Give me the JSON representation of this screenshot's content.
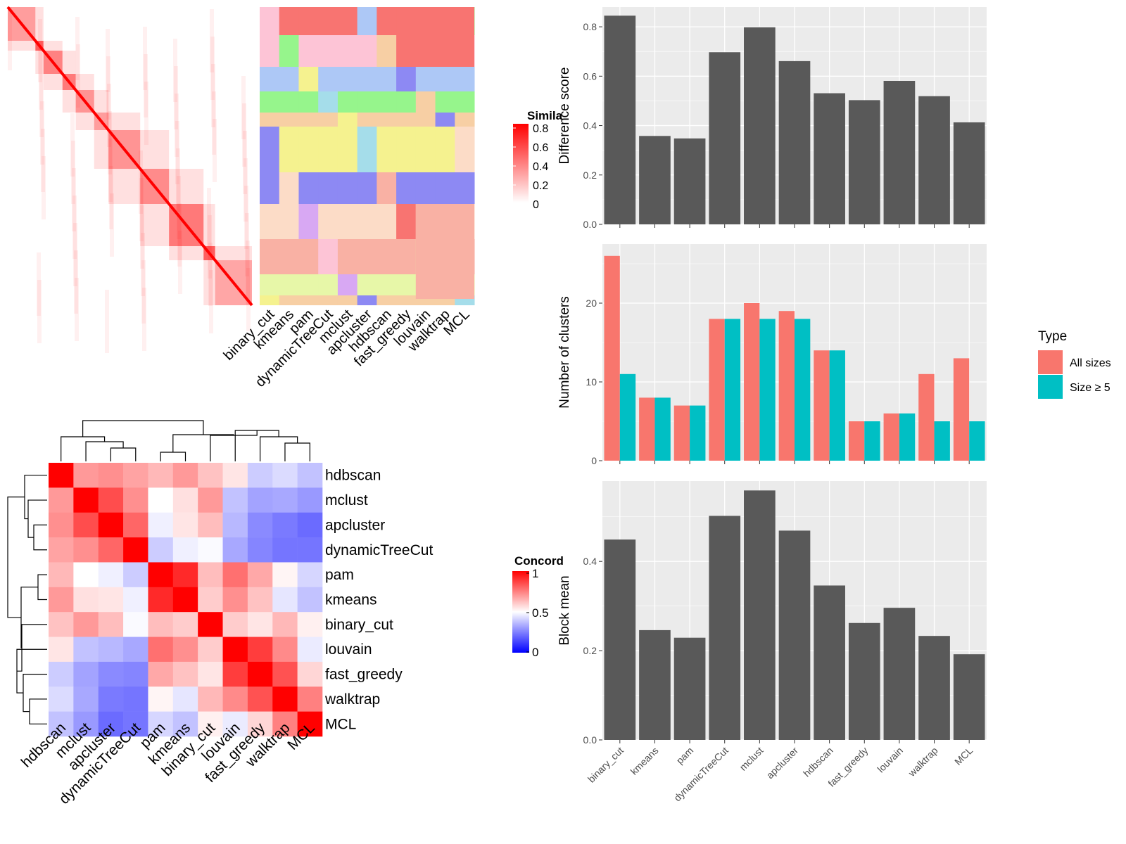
{
  "methods": [
    "binary_cut",
    "kmeans",
    "pam",
    "dynamicTreeCut",
    "mclust",
    "apcluster",
    "hdbscan",
    "fast_greedy",
    "louvain",
    "walktrap",
    "MCL"
  ],
  "colors": {
    "panel_bg": "#EBEBEB",
    "grid": "#FFFFFF",
    "bar_dark": "#595959",
    "all_sizes": "#F8766D",
    "size_ge_5": "#00BFC4",
    "heat_red": "#FF0000",
    "heat_blue": "#0000FF"
  },
  "similarity_heatmap": {
    "legend_title": "Simila",
    "legend_ticks": [
      "0.8",
      "0.6",
      "0.4",
      "0.2",
      "0"
    ],
    "column_labels": [
      "binary_cut",
      "kmeans",
      "pam",
      "dynamicTreeCut",
      "mclust",
      "apcluster",
      "hdbscan",
      "fast_greedy",
      "louvain",
      "walktrap",
      "MCL"
    ]
  },
  "concordance": {
    "legend_title": "Concord",
    "legend_ticks": [
      "1",
      "0.5",
      "0"
    ],
    "order": [
      "hdbscan",
      "mclust",
      "apcluster",
      "dynamicTreeCut",
      "pam",
      "kmeans",
      "binary_cut",
      "louvain",
      "fast_greedy",
      "walktrap",
      "MCL"
    ]
  },
  "chart_data": [
    {
      "type": "bar",
      "categories": [
        "binary_cut",
        "kmeans",
        "pam",
        "dynamicTreeCut",
        "mclust",
        "apcluster",
        "hdbscan",
        "fast_greedy",
        "louvain",
        "walktrap",
        "MCL"
      ],
      "values": [
        0.845,
        0.358,
        0.348,
        0.697,
        0.798,
        0.661,
        0.531,
        0.503,
        0.581,
        0.519,
        0.413
      ],
      "title": "",
      "xlabel": "",
      "ylabel": "Difference score",
      "ylim": [
        0,
        0.88
      ],
      "yticks": [
        "0.0",
        "0.2",
        "0.4",
        "0.6",
        "0.8"
      ],
      "grid": true
    },
    {
      "type": "bar",
      "categories": [
        "binary_cut",
        "kmeans",
        "pam",
        "dynamicTreeCut",
        "mclust",
        "apcluster",
        "hdbscan",
        "fast_greedy",
        "louvain",
        "walktrap",
        "MCL"
      ],
      "series": [
        {
          "name": "All sizes",
          "values": [
            26,
            8,
            7,
            18,
            20,
            19,
            14,
            5,
            6,
            11,
            13
          ]
        },
        {
          "name": "Size ≥ 5",
          "values": [
            11,
            8,
            7,
            18,
            18,
            18,
            14,
            5,
            6,
            5,
            5
          ]
        }
      ],
      "title": "",
      "xlabel": "",
      "ylabel": "Number of clusters",
      "ylim": [
        0,
        27.5
      ],
      "yticks": [
        "0",
        "10",
        "20"
      ],
      "legend_title": "Type",
      "legend_position": "right",
      "grid": true
    },
    {
      "type": "bar",
      "categories": [
        "binary_cut",
        "kmeans",
        "pam",
        "dynamicTreeCut",
        "mclust",
        "apcluster",
        "hdbscan",
        "fast_greedy",
        "louvain",
        "walktrap",
        "MCL"
      ],
      "values": [
        0.449,
        0.246,
        0.229,
        0.502,
        0.559,
        0.469,
        0.346,
        0.262,
        0.296,
        0.233,
        0.192
      ],
      "title": "",
      "xlabel": "",
      "ylabel": "Block mean",
      "ylim": [
        0,
        0.58
      ],
      "yticks": [
        "0.0",
        "0.2",
        "0.4"
      ],
      "grid": true
    },
    {
      "type": "heatmap",
      "title": "",
      "rows": [
        "hdbscan",
        "mclust",
        "apcluster",
        "dynamicTreeCut",
        "pam",
        "kmeans",
        "binary_cut",
        "louvain",
        "fast_greedy",
        "walktrap",
        "MCL"
      ],
      "columns": [
        "hdbscan",
        "mclust",
        "apcluster",
        "dynamicTreeCut",
        "pam",
        "kmeans",
        "binary_cut",
        "louvain",
        "fast_greedy",
        "walktrap",
        "MCL"
      ],
      "values": [
        [
          1.0,
          0.7,
          0.72,
          0.68,
          0.64,
          0.7,
          0.62,
          0.55,
          0.4,
          0.43,
          0.38
        ],
        [
          0.7,
          1.0,
          0.85,
          0.72,
          0.5,
          0.56,
          0.7,
          0.38,
          0.32,
          0.33,
          0.3
        ],
        [
          0.72,
          0.85,
          1.0,
          0.8,
          0.47,
          0.55,
          0.63,
          0.36,
          0.27,
          0.24,
          0.21
        ],
        [
          0.68,
          0.72,
          0.8,
          1.0,
          0.4,
          0.47,
          0.49,
          0.33,
          0.26,
          0.23,
          0.23
        ],
        [
          0.64,
          0.5,
          0.47,
          0.4,
          1.0,
          0.92,
          0.63,
          0.78,
          0.67,
          0.52,
          0.42
        ],
        [
          0.7,
          0.56,
          0.55,
          0.47,
          0.92,
          1.0,
          0.6,
          0.72,
          0.62,
          0.45,
          0.38
        ],
        [
          0.62,
          0.7,
          0.63,
          0.49,
          0.63,
          0.6,
          1.0,
          0.6,
          0.55,
          0.64,
          0.53
        ],
        [
          0.55,
          0.38,
          0.36,
          0.33,
          0.78,
          0.72,
          0.6,
          1.0,
          0.88,
          0.73,
          0.46
        ],
        [
          0.4,
          0.32,
          0.27,
          0.26,
          0.67,
          0.62,
          0.55,
          0.88,
          1.0,
          0.84,
          0.58
        ],
        [
          0.43,
          0.33,
          0.24,
          0.23,
          0.52,
          0.45,
          0.64,
          0.73,
          0.84,
          1.0,
          0.75
        ],
        [
          0.38,
          0.3,
          0.21,
          0.23,
          0.42,
          0.38,
          0.53,
          0.46,
          0.58,
          0.75,
          1.0
        ]
      ],
      "legend_title": "Concord",
      "scale": {
        "min": 0,
        "mid": 0.5,
        "max": 1
      }
    }
  ]
}
